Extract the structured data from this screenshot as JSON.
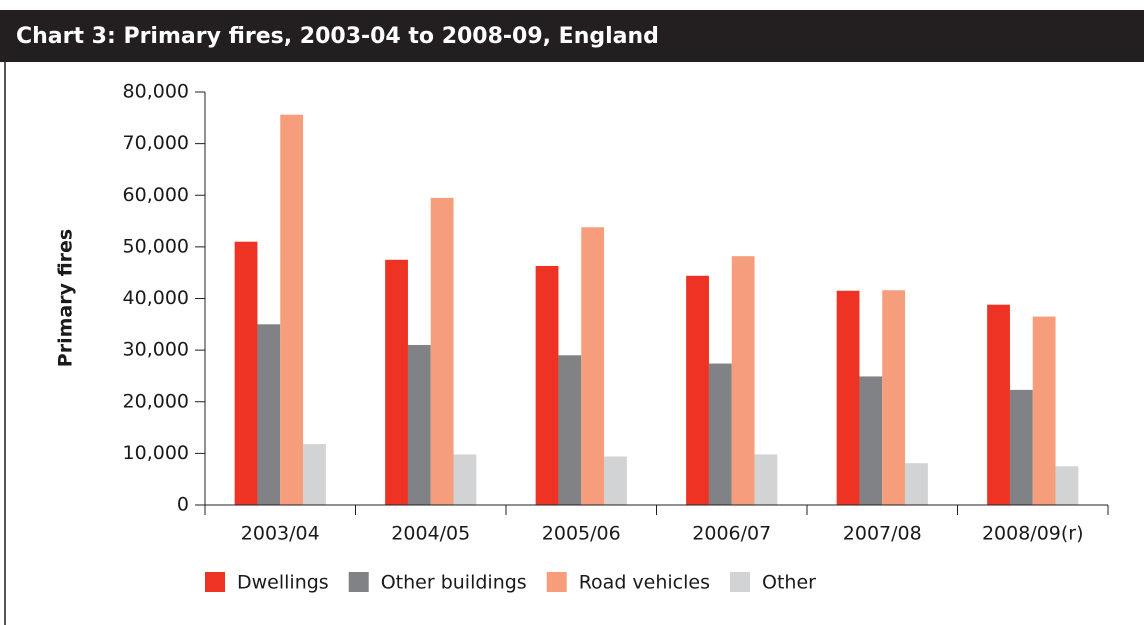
{
  "chart_data": {
    "type": "bar",
    "title": "Chart 3:   Primary fires, 2003-04 to 2008-09, England",
    "ylabel": "Primary fires",
    "categories": [
      "2003/04",
      "2004/05",
      "2005/06",
      "2006/07",
      "2007/08",
      "2008/09(r)"
    ],
    "series": [
      {
        "name": "Dwellings",
        "color": "#ee3224",
        "values": [
          51000,
          47500,
          46300,
          44400,
          41500,
          38800
        ]
      },
      {
        "name": "Other buildings",
        "color": "#808285",
        "values": [
          35000,
          31000,
          29000,
          27400,
          24900,
          22300
        ]
      },
      {
        "name": "Road vehicles",
        "color": "#f69e7b",
        "values": [
          75600,
          59500,
          53800,
          48200,
          41600,
          36500
        ]
      },
      {
        "name": "Other",
        "color": "#d1d3d4",
        "values": [
          11800,
          9800,
          9400,
          9800,
          8100,
          7500
        ]
      }
    ],
    "ylim": [
      0,
      80000
    ],
    "yticks": [
      0,
      {
        "value": 10000,
        "label": "10,000"
      },
      {
        "value": 20000,
        "label": "20,000"
      },
      {
        "value": 30000,
        "label": "30,000"
      },
      {
        "value": 40000,
        "label": "40,000"
      },
      {
        "value": 50000,
        "label": "50,000"
      },
      {
        "value": 60000,
        "label": "60,000"
      },
      {
        "value": 70000,
        "label": "70,000"
      },
      {
        "value": 80000,
        "label": "80,000"
      }
    ],
    "legend": "bottom"
  }
}
